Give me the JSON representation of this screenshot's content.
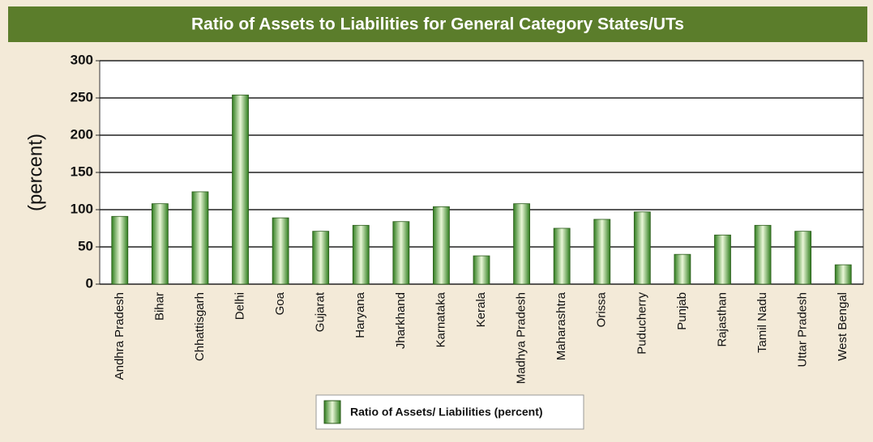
{
  "chart_data": {
    "type": "bar",
    "title": "Ratio of Assets to Liabilities for General Category States/UTs",
    "y_label": "(percent)",
    "categories": [
      "Andhra Pradesh",
      "Bihar",
      "Chhattisgarh",
      "Delhi",
      "Goa",
      "Gujarat",
      "Haryana",
      "Jharkhand",
      "Karnataka",
      "Kerala",
      "Madhya Pradesh",
      "Maharashtra",
      "Orissa",
      "Puducherry",
      "Punjab",
      "Rajasthan",
      "Tamil Nadu",
      "Uttar Pradesh",
      "West Bengal"
    ],
    "series": [
      {
        "name": "Ratio of Assets/ Liabilities (percent)",
        "color": "#2f7d1e",
        "values": [
          91,
          108,
          124,
          254,
          89,
          71,
          79,
          84,
          104,
          38,
          108,
          75,
          87,
          97,
          40,
          66,
          79,
          71,
          26
        ]
      }
    ],
    "ylim": [
      0,
      300
    ],
    "yticks": [
      0,
      50,
      100,
      150,
      200,
      250,
      300
    ],
    "grid": true
  }
}
